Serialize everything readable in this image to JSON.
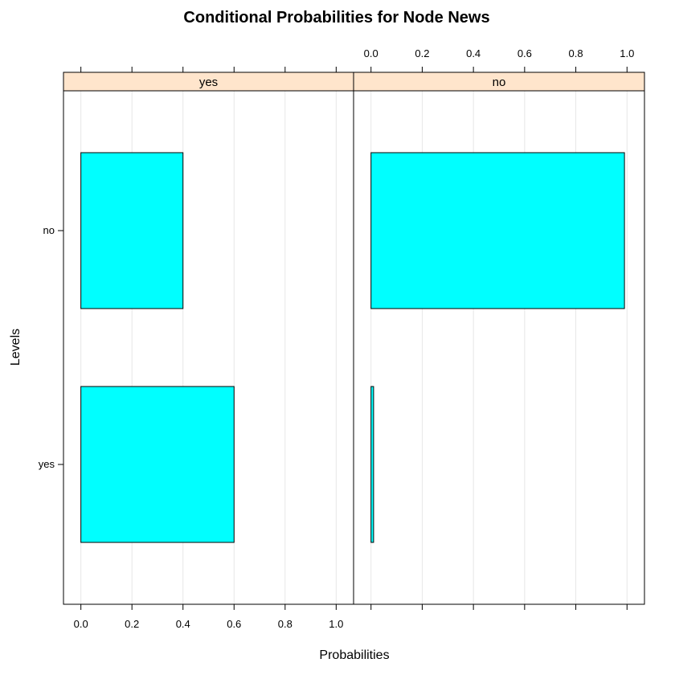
{
  "chart_data": {
    "type": "bar",
    "title": "Conditional Probabilities for Node News",
    "xlabel": "Probabilities",
    "ylabel": "Levels",
    "categories": [
      "yes",
      "no"
    ],
    "xlim": [
      0,
      1
    ],
    "x_ticks": [
      "0.0",
      "0.2",
      "0.4",
      "0.6",
      "0.8",
      "1.0"
    ],
    "grid": true,
    "bar_color": "#00ffff",
    "strip_color": "#ffe5cc",
    "panels": [
      {
        "name": "yes",
        "values": {
          "no": 0.4,
          "yes": 0.6
        }
      },
      {
        "name": "no",
        "values": {
          "no": 0.99,
          "yes": 0.01
        }
      }
    ]
  }
}
